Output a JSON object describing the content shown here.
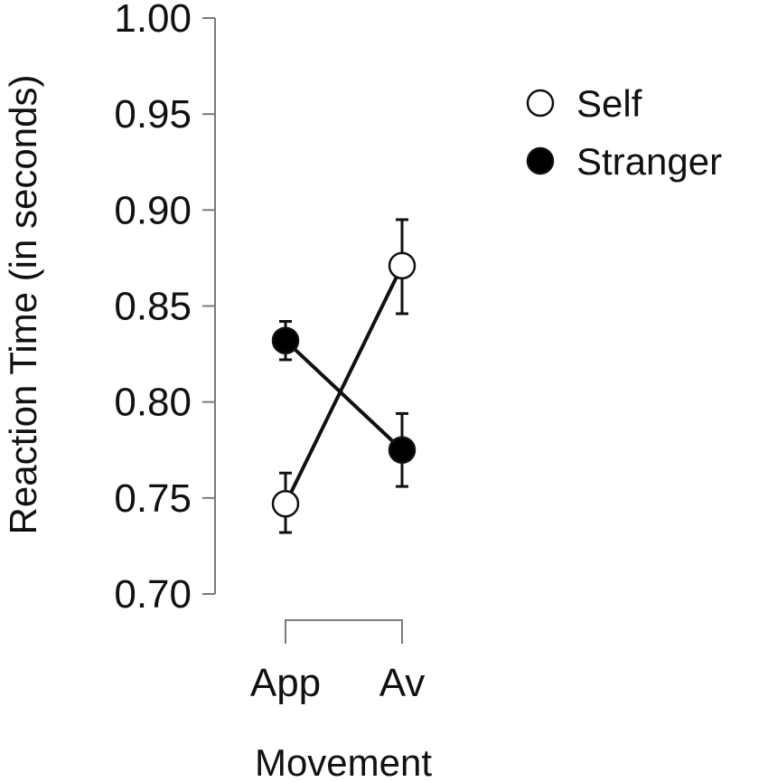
{
  "chart_data": {
    "type": "line",
    "xlabel": "Movement",
    "ylabel": "Reaction Time (in seconds)",
    "categories": [
      "App",
      "Av"
    ],
    "ylim": [
      0.7,
      1.0
    ],
    "yticks": [
      "0.70",
      "0.75",
      "0.80",
      "0.85",
      "0.90",
      "0.95",
      "1.00"
    ],
    "legend_position": "top-right",
    "grid": false,
    "series": [
      {
        "name": "Self",
        "marker": "open-circle",
        "color": "#ffffff",
        "values": [
          0.747,
          0.871
        ],
        "err_low": [
          0.732,
          0.846
        ],
        "err_high": [
          0.763,
          0.895
        ]
      },
      {
        "name": "Stranger",
        "marker": "filled-circle",
        "color": "#000000",
        "values": [
          0.832,
          0.775
        ],
        "err_low": [
          0.822,
          0.756
        ],
        "err_high": [
          0.842,
          0.794
        ]
      }
    ]
  }
}
